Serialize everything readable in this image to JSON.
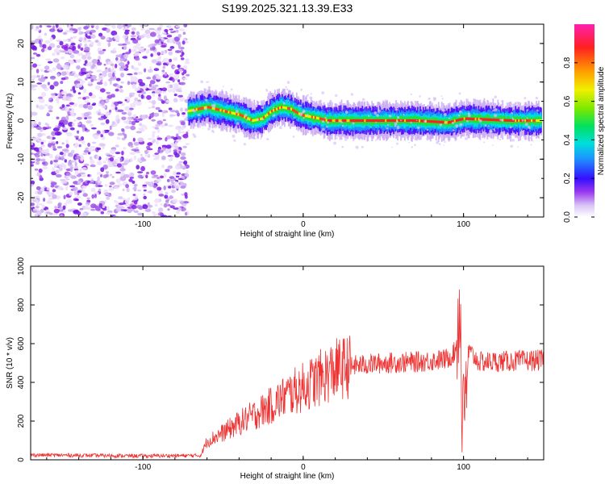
{
  "title": "S199.2025.321.13.39.E33",
  "chart_data": [
    {
      "type": "heatmap",
      "name": "spectrogram",
      "xlabel": "Height of straight line (km)",
      "ylabel": "Frequency (Hz)",
      "xlim": [
        -170,
        150
      ],
      "ylim": [
        -25,
        25
      ],
      "xticks": [
        -100,
        0,
        100
      ],
      "yticks": [
        -20,
        -10,
        0,
        10,
        20
      ],
      "noise_region_x": [
        -170,
        -72
      ],
      "ridge": {
        "description": "narrow band of high amplitude near 0 Hz",
        "x": [
          -72,
          -60,
          -50,
          -40,
          -32,
          -26,
          -20,
          -14,
          -8,
          -2,
          4,
          10,
          15,
          40,
          70,
          90,
          95,
          100,
          130,
          148
        ],
        "freq": [
          2.5,
          3.5,
          2.5,
          1.5,
          0,
          0.5,
          2.5,
          3.5,
          3,
          1.5,
          1,
          0.5,
          0,
          0,
          0,
          -0.5,
          0,
          0.5,
          0,
          0
        ]
      },
      "colorbar": {
        "label": "Normalized spectral amplitude",
        "range": [
          0.0,
          1.0
        ],
        "ticks": [
          0.0,
          0.2,
          0.4,
          0.6,
          0.8
        ],
        "tick_labels": [
          "0.0",
          "0.2",
          "0.4",
          "0.6",
          "0.8"
        ],
        "colors": [
          "#ffffff",
          "#c9a9f0",
          "#8a1ee8",
          "#4a10ff",
          "#1e90ff",
          "#00dede",
          "#00e060",
          "#7ae800",
          "#f0f000",
          "#ff9900",
          "#ff2020",
          "#ff20b0"
        ]
      }
    },
    {
      "type": "line",
      "name": "snr",
      "xlabel": "Height of straight line (km)",
      "ylabel": "SNR (10 * v/v)",
      "xlim": [
        -170,
        150
      ],
      "ylim": [
        0,
        1000
      ],
      "xticks": [
        -100,
        0,
        100
      ],
      "yticks": [
        0,
        200,
        400,
        600,
        800,
        1000
      ],
      "color": "#ee3333",
      "series": [
        {
          "name": "SNR",
          "x": [
            -170,
            -100,
            -64,
            -60,
            -50,
            -40,
            -30,
            -20,
            -10,
            0,
            10,
            20,
            30,
            50,
            70,
            90,
            95,
            98,
            99,
            100,
            101,
            103,
            110,
            130,
            150
          ],
          "y": [
            25,
            20,
            22,
            95,
            140,
            190,
            235,
            280,
            335,
            375,
            420,
            465,
            485,
            500,
            505,
            520,
            560,
            850,
            70,
            620,
            150,
            560,
            505,
            510,
            515
          ]
        }
      ]
    }
  ]
}
